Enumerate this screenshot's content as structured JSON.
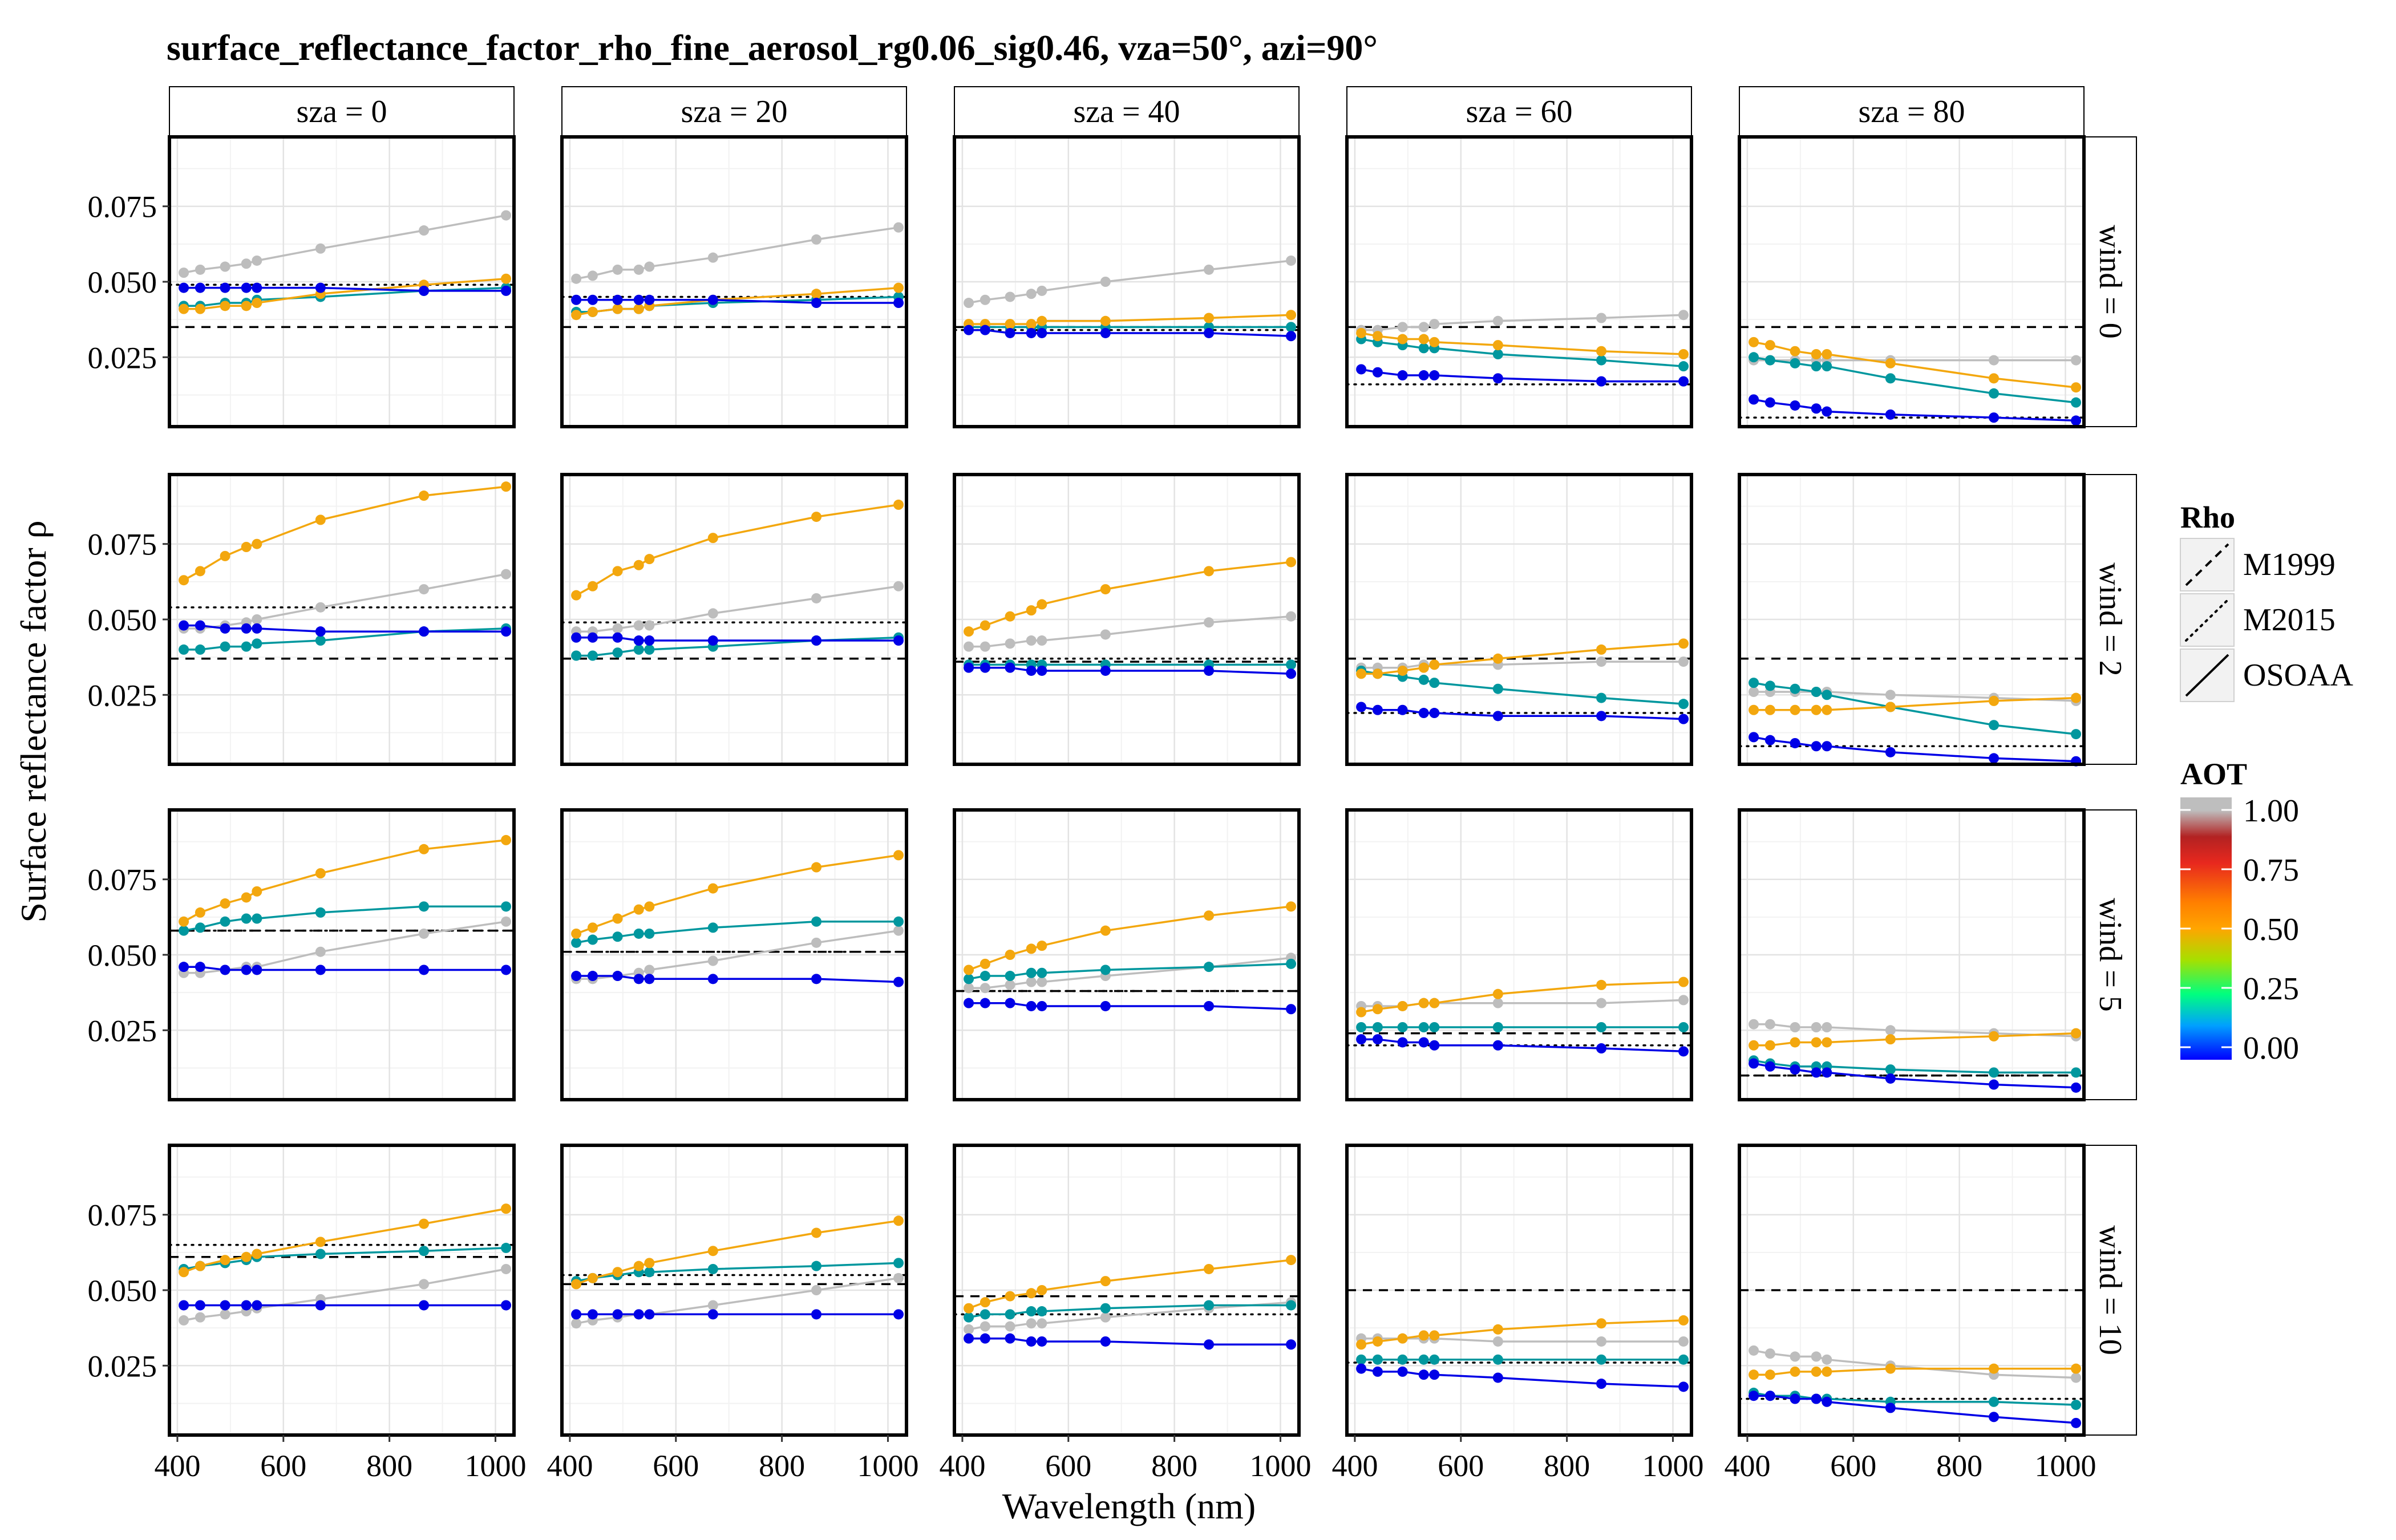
{
  "chart_data": {
    "type": "line",
    "title": "surface_reflectance_factor_rho_fine_aerosol_rg0.06_sig0.46, vza=50°, azi=90°",
    "xlabel": "Wavelength (nm)",
    "ylabel": "Surface reflectance factor ρ",
    "xlim": [
      385,
      1035
    ],
    "ylim": [
      0.002,
      0.098
    ],
    "x_ticks": [
      400,
      600,
      800,
      1000
    ],
    "y_ticks": [
      0.025,
      0.05,
      0.075
    ],
    "y_tick_labels": [
      "0.025",
      "0.050",
      "0.075"
    ],
    "grid": true,
    "col_facets": [
      "sza = 0",
      "sza = 20",
      "sza = 40",
      "sza = 60",
      "sza = 80"
    ],
    "row_facets": [
      "wind = 0",
      "wind = 2",
      "wind = 5",
      "wind = 10"
    ],
    "wavelengths": [
      412,
      443,
      490,
      530,
      550,
      670,
      865,
      1020
    ],
    "legend_rho": {
      "title": "Rho",
      "items": [
        {
          "label": "M1999",
          "linetype": "dashed"
        },
        {
          "label": "M2015",
          "linetype": "dotted"
        },
        {
          "label": "OSOAA",
          "linetype": "solid"
        }
      ]
    },
    "legend_aot": {
      "title": "AOT",
      "labels": [
        "1.00",
        "0.75",
        "0.50",
        "0.25",
        "0.00"
      ],
      "values": [
        1.0,
        0.75,
        0.5,
        0.25,
        0.0
      ],
      "colors": [
        "#0000ff",
        "#00ff7f",
        "#ffa500",
        "#ff0000",
        "#b22222"
      ]
    },
    "series_colors": [
      "#0000e6",
      "#00979e",
      "#f3a70e",
      "#bdbdbd"
    ],
    "series_aot": [
      0.01,
      0.2,
      0.5,
      1.0
    ],
    "panels": [
      [
        {
          "m1999": 0.035,
          "m2015": 0.049,
          "series": [
            [
              0.048,
              0.048,
              0.048,
              0.048,
              0.048,
              0.048,
              0.047,
              0.047
            ],
            [
              0.042,
              0.042,
              0.043,
              0.043,
              0.044,
              0.045,
              0.047,
              0.048
            ],
            [
              0.041,
              0.041,
              0.042,
              0.042,
              0.043,
              0.046,
              0.049,
              0.051
            ],
            [
              0.053,
              0.054,
              0.055,
              0.056,
              0.057,
              0.061,
              0.067,
              0.072
            ]
          ]
        },
        {
          "m1999": 0.035,
          "m2015": 0.045,
          "series": [
            [
              0.044,
              0.044,
              0.044,
              0.044,
              0.044,
              0.044,
              0.043,
              0.043
            ],
            [
              0.04,
              0.04,
              0.041,
              0.041,
              0.042,
              0.043,
              0.044,
              0.045
            ],
            [
              0.039,
              0.04,
              0.041,
              0.041,
              0.042,
              0.044,
              0.046,
              0.048
            ],
            [
              0.051,
              0.052,
              0.054,
              0.054,
              0.055,
              0.058,
              0.064,
              0.068
            ]
          ]
        },
        {
          "m1999": 0.035,
          "m2015": 0.034,
          "series": [
            [
              0.034,
              0.034,
              0.033,
              0.033,
              0.033,
              0.033,
              0.033,
              0.032
            ],
            [
              0.035,
              0.035,
              0.035,
              0.035,
              0.035,
              0.035,
              0.035,
              0.035
            ],
            [
              0.036,
              0.036,
              0.036,
              0.036,
              0.037,
              0.037,
              0.038,
              0.039
            ],
            [
              0.043,
              0.044,
              0.045,
              0.046,
              0.047,
              0.05,
              0.054,
              0.057
            ]
          ]
        },
        {
          "m1999": 0.035,
          "m2015": 0.016,
          "series": [
            [
              0.021,
              0.02,
              0.019,
              0.019,
              0.019,
              0.018,
              0.017,
              0.017
            ],
            [
              0.031,
              0.03,
              0.029,
              0.028,
              0.028,
              0.026,
              0.024,
              0.022
            ],
            [
              0.033,
              0.032,
              0.031,
              0.031,
              0.03,
              0.029,
              0.027,
              0.026
            ],
            [
              0.034,
              0.034,
              0.035,
              0.035,
              0.036,
              0.037,
              0.038,
              0.039
            ]
          ]
        },
        {
          "m1999": 0.035,
          "m2015": 0.005,
          "series": [
            [
              0.011,
              0.01,
              0.009,
              0.008,
              0.007,
              0.006,
              0.005,
              0.004
            ],
            [
              0.025,
              0.024,
              0.023,
              0.022,
              0.022,
              0.018,
              0.013,
              0.01
            ],
            [
              0.03,
              0.029,
              0.027,
              0.026,
              0.026,
              0.023,
              0.018,
              0.015
            ],
            [
              0.024,
              0.024,
              0.024,
              0.024,
              0.024,
              0.024,
              0.024,
              0.024
            ]
          ]
        }
      ],
      [
        {
          "m1999": 0.037,
          "m2015": 0.054,
          "series": [
            [
              0.048,
              0.048,
              0.047,
              0.047,
              0.047,
              0.046,
              0.046,
              0.046
            ],
            [
              0.04,
              0.04,
              0.041,
              0.041,
              0.042,
              0.043,
              0.046,
              0.047
            ],
            [
              0.063,
              0.066,
              0.071,
              0.074,
              0.075,
              0.083,
              0.091,
              0.094
            ],
            [
              0.047,
              0.047,
              0.048,
              0.049,
              0.05,
              0.054,
              0.06,
              0.065
            ]
          ]
        },
        {
          "m1999": 0.037,
          "m2015": 0.049,
          "series": [
            [
              0.044,
              0.044,
              0.044,
              0.043,
              0.043,
              0.043,
              0.043,
              0.043
            ],
            [
              0.038,
              0.038,
              0.039,
              0.04,
              0.04,
              0.041,
              0.043,
              0.044
            ],
            [
              0.058,
              0.061,
              0.066,
              0.068,
              0.07,
              0.077,
              0.084,
              0.088
            ],
            [
              0.046,
              0.046,
              0.047,
              0.048,
              0.048,
              0.052,
              0.057,
              0.061
            ]
          ]
        },
        {
          "m1999": 0.036,
          "m2015": 0.037,
          "series": [
            [
              0.034,
              0.034,
              0.034,
              0.033,
              0.033,
              0.033,
              0.033,
              0.032
            ],
            [
              0.035,
              0.035,
              0.035,
              0.035,
              0.035,
              0.035,
              0.035,
              0.035
            ],
            [
              0.046,
              0.048,
              0.051,
              0.053,
              0.055,
              0.06,
              0.066,
              0.069
            ],
            [
              0.041,
              0.041,
              0.042,
              0.043,
              0.043,
              0.045,
              0.049,
              0.051
            ]
          ]
        },
        {
          "m1999": 0.037,
          "m2015": 0.019,
          "series": [
            [
              0.021,
              0.02,
              0.02,
              0.019,
              0.019,
              0.018,
              0.018,
              0.017
            ],
            [
              0.033,
              0.032,
              0.031,
              0.03,
              0.029,
              0.027,
              0.024,
              0.022
            ],
            [
              0.032,
              0.032,
              0.033,
              0.034,
              0.035,
              0.037,
              0.04,
              0.042
            ],
            [
              0.034,
              0.034,
              0.034,
              0.035,
              0.035,
              0.035,
              0.036,
              0.036
            ]
          ]
        },
        {
          "m1999": 0.037,
          "m2015": 0.008,
          "series": [
            [
              0.011,
              0.01,
              0.009,
              0.008,
              0.008,
              0.006,
              0.004,
              0.003
            ],
            [
              0.029,
              0.028,
              0.027,
              0.026,
              0.025,
              0.021,
              0.015,
              0.012
            ],
            [
              0.02,
              0.02,
              0.02,
              0.02,
              0.02,
              0.021,
              0.023,
              0.024
            ],
            [
              0.026,
              0.026,
              0.026,
              0.026,
              0.026,
              0.025,
              0.024,
              0.023
            ]
          ]
        }
      ],
      [
        {
          "m1999": 0.058,
          "m2015": 0.058,
          "series": [
            [
              0.046,
              0.046,
              0.045,
              0.045,
              0.045,
              0.045,
              0.045,
              0.045
            ],
            [
              0.058,
              0.059,
              0.061,
              0.062,
              0.062,
              0.064,
              0.066,
              0.066
            ],
            [
              0.061,
              0.064,
              0.067,
              0.069,
              0.071,
              0.077,
              0.085,
              0.088
            ],
            [
              0.044,
              0.044,
              0.045,
              0.046,
              0.046,
              0.051,
              0.057,
              0.061
            ]
          ]
        },
        {
          "m1999": 0.051,
          "m2015": 0.051,
          "series": [
            [
              0.043,
              0.043,
              0.043,
              0.042,
              0.042,
              0.042,
              0.042,
              0.041
            ],
            [
              0.054,
              0.055,
              0.056,
              0.057,
              0.057,
              0.059,
              0.061,
              0.061
            ],
            [
              0.057,
              0.059,
              0.062,
              0.065,
              0.066,
              0.072,
              0.079,
              0.083
            ],
            [
              0.042,
              0.042,
              0.043,
              0.044,
              0.045,
              0.048,
              0.054,
              0.058
            ]
          ]
        },
        {
          "m1999": 0.038,
          "m2015": 0.038,
          "series": [
            [
              0.034,
              0.034,
              0.034,
              0.033,
              0.033,
              0.033,
              0.033,
              0.032
            ],
            [
              0.042,
              0.043,
              0.043,
              0.044,
              0.044,
              0.045,
              0.046,
              0.047
            ],
            [
              0.045,
              0.047,
              0.05,
              0.052,
              0.053,
              0.058,
              0.063,
              0.066
            ],
            [
              0.039,
              0.039,
              0.04,
              0.041,
              0.041,
              0.043,
              0.046,
              0.049
            ]
          ]
        },
        {
          "m1999": 0.024,
          "m2015": 0.02,
          "series": [
            [
              0.022,
              0.022,
              0.021,
              0.021,
              0.02,
              0.02,
              0.019,
              0.018
            ],
            [
              0.026,
              0.026,
              0.026,
              0.026,
              0.026,
              0.026,
              0.026,
              0.026
            ],
            [
              0.031,
              0.032,
              0.033,
              0.034,
              0.034,
              0.037,
              0.04,
              0.041
            ],
            [
              0.033,
              0.033,
              0.033,
              0.034,
              0.034,
              0.034,
              0.034,
              0.035
            ]
          ]
        },
        {
          "m1999": 0.01,
          "m2015": 0.01,
          "series": [
            [
              0.014,
              0.013,
              0.012,
              0.011,
              0.011,
              0.009,
              0.007,
              0.006
            ],
            [
              0.015,
              0.014,
              0.013,
              0.013,
              0.013,
              0.012,
              0.011,
              0.011
            ],
            [
              0.02,
              0.02,
              0.021,
              0.021,
              0.021,
              0.022,
              0.023,
              0.024
            ],
            [
              0.027,
              0.027,
              0.026,
              0.026,
              0.026,
              0.025,
              0.024,
              0.023
            ]
          ]
        }
      ],
      [
        {
          "m1999": 0.061,
          "m2015": 0.065,
          "series": [
            [
              0.045,
              0.045,
              0.045,
              0.045,
              0.045,
              0.045,
              0.045,
              0.045
            ],
            [
              0.057,
              0.058,
              0.059,
              0.06,
              0.061,
              0.062,
              0.063,
              0.064
            ],
            [
              0.056,
              0.058,
              0.06,
              0.061,
              0.062,
              0.066,
              0.072,
              0.077
            ],
            [
              0.04,
              0.041,
              0.042,
              0.043,
              0.044,
              0.047,
              0.052,
              0.057
            ]
          ]
        },
        {
          "m1999": 0.052,
          "m2015": 0.055,
          "series": [
            [
              0.042,
              0.042,
              0.042,
              0.042,
              0.042,
              0.042,
              0.042,
              0.042
            ],
            [
              0.053,
              0.054,
              0.055,
              0.056,
              0.056,
              0.057,
              0.058,
              0.059
            ],
            [
              0.052,
              0.054,
              0.056,
              0.058,
              0.059,
              0.063,
              0.069,
              0.073
            ],
            [
              0.039,
              0.04,
              0.041,
              0.042,
              0.042,
              0.045,
              0.05,
              0.054
            ]
          ]
        },
        {
          "m1999": 0.048,
          "m2015": 0.042,
          "series": [
            [
              0.034,
              0.034,
              0.034,
              0.033,
              0.033,
              0.033,
              0.032,
              0.032
            ],
            [
              0.041,
              0.042,
              0.042,
              0.043,
              0.043,
              0.044,
              0.045,
              0.045
            ],
            [
              0.044,
              0.046,
              0.048,
              0.049,
              0.05,
              0.053,
              0.057,
              0.06
            ],
            [
              0.037,
              0.038,
              0.038,
              0.039,
              0.039,
              0.041,
              0.044,
              0.046
            ]
          ]
        },
        {
          "m1999": 0.05,
          "m2015": 0.026,
          "series": [
            [
              0.024,
              0.023,
              0.023,
              0.022,
              0.022,
              0.021,
              0.019,
              0.018
            ],
            [
              0.027,
              0.027,
              0.027,
              0.027,
              0.027,
              0.027,
              0.027,
              0.027
            ],
            [
              0.032,
              0.033,
              0.034,
              0.035,
              0.035,
              0.037,
              0.039,
              0.04
            ],
            [
              0.034,
              0.034,
              0.034,
              0.034,
              0.034,
              0.033,
              0.033,
              0.033
            ]
          ]
        },
        {
          "m1999": 0.05,
          "m2015": 0.014,
          "series": [
            [
              0.015,
              0.015,
              0.014,
              0.014,
              0.013,
              0.011,
              0.008,
              0.006
            ],
            [
              0.016,
              0.015,
              0.015,
              0.014,
              0.014,
              0.013,
              0.013,
              0.012
            ],
            [
              0.022,
              0.022,
              0.023,
              0.023,
              0.023,
              0.024,
              0.024,
              0.024
            ],
            [
              0.03,
              0.029,
              0.028,
              0.028,
              0.027,
              0.025,
              0.022,
              0.021
            ]
          ]
        }
      ]
    ]
  }
}
